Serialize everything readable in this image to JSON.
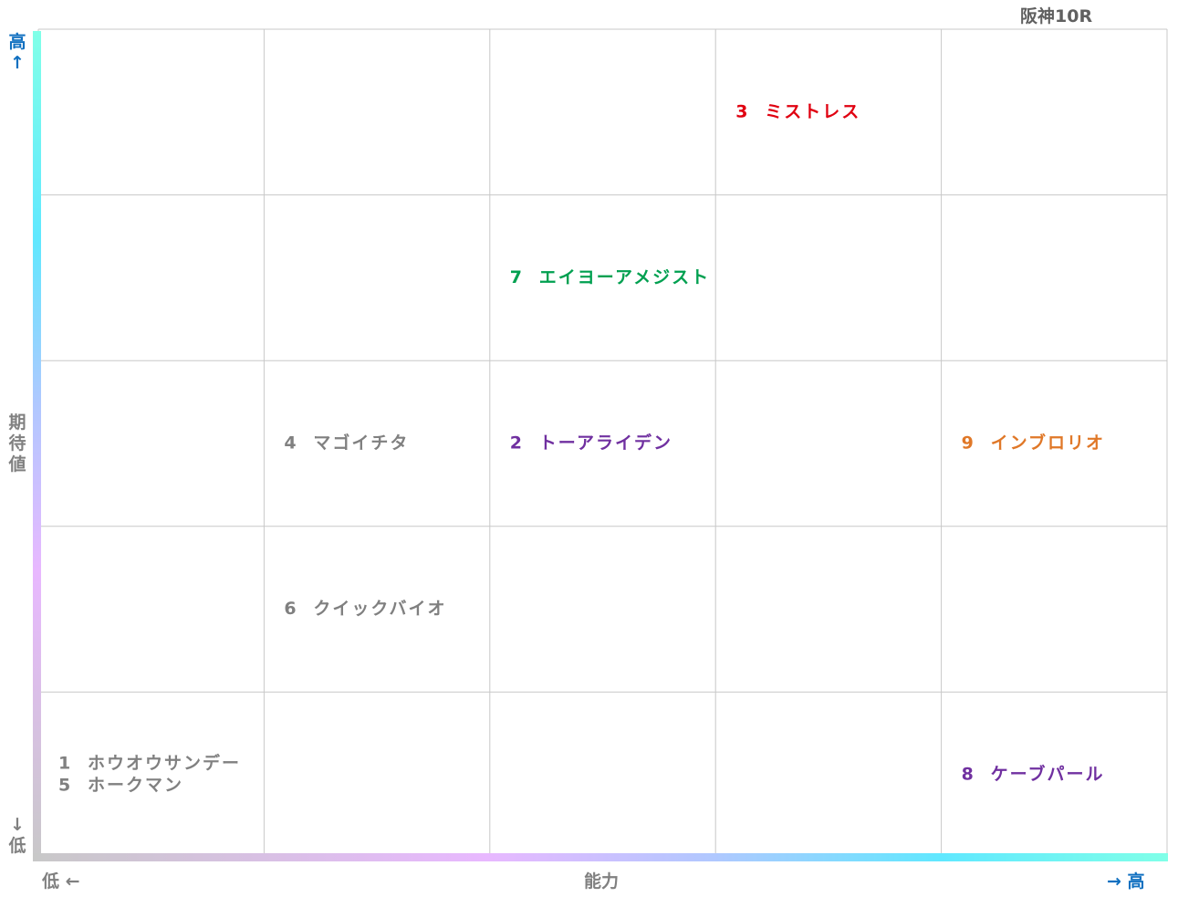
{
  "header": {
    "title": "阪神10R"
  },
  "y_axis": {
    "high": "高↑",
    "label": "期待値",
    "low": "↓低"
  },
  "x_axis": {
    "low": "低 ←",
    "label": "能力",
    "high": "→ 高"
  },
  "grid": {
    "rows": [
      {
        "cells": [
          [],
          [],
          [],
          [
            {
              "number": "3",
              "name": "ミストレス",
              "color": "#e00010"
            }
          ],
          []
        ]
      },
      {
        "cells": [
          [],
          [],
          [
            {
              "number": "7",
              "name": "エイヨーアメジスト",
              "color": "#00a050"
            }
          ],
          [],
          []
        ]
      },
      {
        "cells": [
          [],
          [
            {
              "number": "4",
              "name": "マゴイチタ",
              "color": "#808080"
            }
          ],
          [
            {
              "number": "2",
              "name": "トーアライデン",
              "color": "#7030a0"
            }
          ],
          [],
          [
            {
              "number": "9",
              "name": "インブロリオ",
              "color": "#e07828"
            }
          ]
        ]
      },
      {
        "cells": [
          [],
          [
            {
              "number": "6",
              "name": "クイックバイオ",
              "color": "#808080"
            }
          ],
          [],
          [],
          []
        ]
      },
      {
        "cells": [
          [
            {
              "number": "1",
              "name": "ホウオウサンデー",
              "color": "#808080"
            },
            {
              "number": "5",
              "name": "ホークマン",
              "color": "#808080"
            }
          ],
          [],
          [],
          [],
          [
            {
              "number": "8",
              "name": "ケーブパール",
              "color": "#7030a0"
            }
          ]
        ]
      }
    ]
  }
}
